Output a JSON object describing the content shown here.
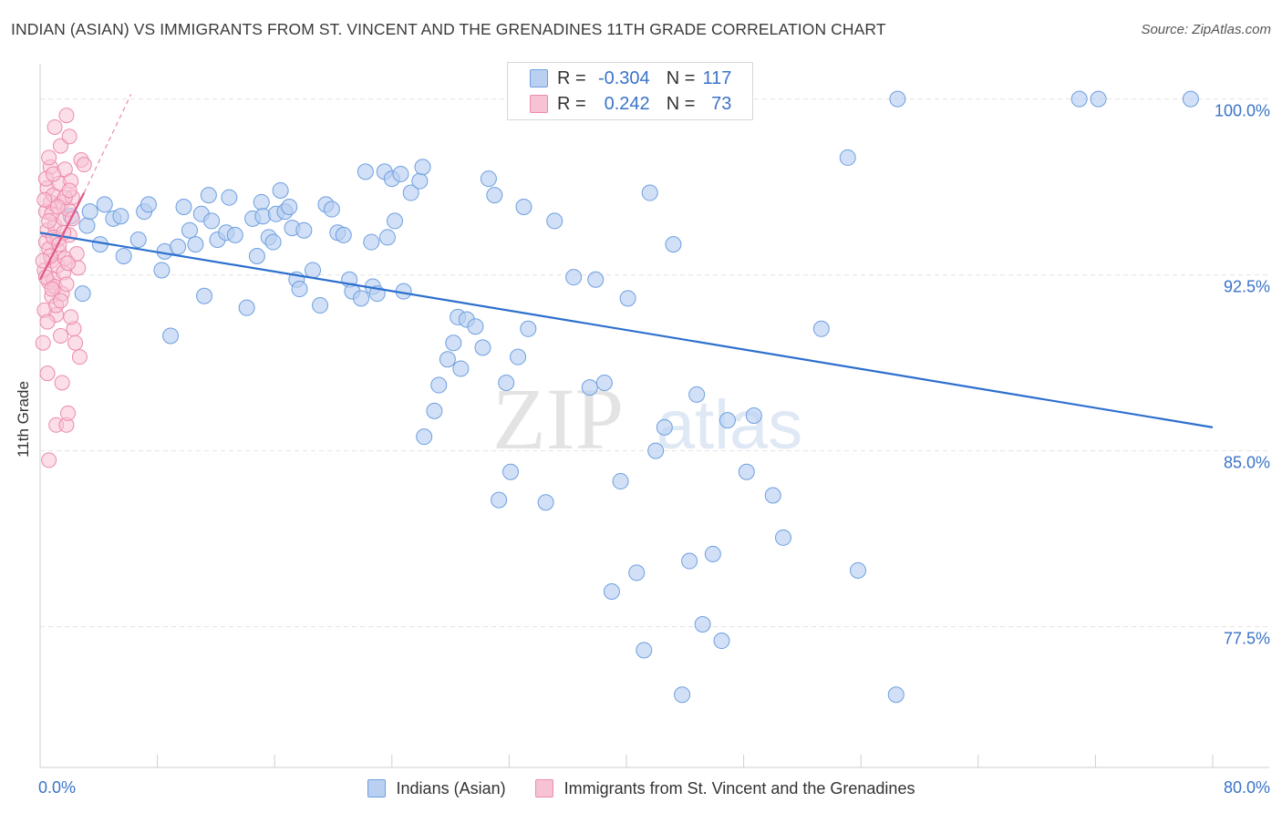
{
  "title": "INDIAN (ASIAN) VS IMMIGRANTS FROM ST. VINCENT AND THE GRENADINES 11TH GRADE CORRELATION CHART",
  "source": "Source: ZipAtlas.com",
  "watermark": {
    "zip": "ZIP",
    "atlas": "atlas"
  },
  "legend": {
    "r_label": "R =",
    "n_label": "N =",
    "series1": {
      "r": "-0.304",
      "n": "117"
    },
    "series2": {
      "r": "0.242",
      "n": "73"
    }
  },
  "colors": {
    "blue_fill": "#b9d0f1",
    "blue_stroke": "#6e9fe0",
    "blue_line": "#2c6fce",
    "pink_fill": "#f7c3d4",
    "pink_stroke": "#ec8aab",
    "pink_line": "#e0578a",
    "grid": "#e2e2e2",
    "tick_label": "#3a73c8"
  },
  "chart_data": {
    "type": "scatter",
    "title": "INDIAN (ASIAN) VS IMMIGRANTS FROM ST. VINCENT AND THE GRENADINES 11TH GRADE CORRELATION CHART",
    "xlabel": "",
    "ylabel": "11th Grade",
    "xlim": [
      0,
      80
    ],
    "ylim": [
      71.5,
      101.5
    ],
    "x_tick_labels": [
      "0.0%",
      "80.0%"
    ],
    "y_ticks": [
      77.5,
      85.0,
      92.5,
      100.0
    ],
    "y_tick_labels": [
      "77.5%",
      "85.0%",
      "92.5%",
      "100.0%"
    ],
    "grid": true,
    "legend_position": "bottom",
    "series": [
      {
        "name": "Indians (Asian)",
        "r": -0.304,
        "n": 117,
        "trend": {
          "x": [
            0,
            80
          ],
          "y": [
            94.3,
            86.0
          ]
        },
        "points": [
          [
            2.1,
            95.0
          ],
          [
            2.9,
            91.7
          ],
          [
            3.2,
            94.6
          ],
          [
            3.4,
            95.2
          ],
          [
            4.1,
            93.8
          ],
          [
            4.4,
            95.5
          ],
          [
            5.0,
            94.9
          ],
          [
            5.5,
            95.0
          ],
          [
            5.7,
            93.3
          ],
          [
            6.7,
            94.0
          ],
          [
            7.1,
            95.2
          ],
          [
            7.4,
            95.5
          ],
          [
            8.3,
            92.7
          ],
          [
            8.5,
            93.5
          ],
          [
            8.9,
            89.9
          ],
          [
            9.4,
            93.7
          ],
          [
            9.8,
            95.4
          ],
          [
            10.2,
            94.4
          ],
          [
            10.6,
            93.8
          ],
          [
            11.0,
            95.1
          ],
          [
            11.2,
            91.6
          ],
          [
            11.5,
            95.9
          ],
          [
            11.7,
            94.8
          ],
          [
            12.1,
            94.0
          ],
          [
            12.7,
            94.3
          ],
          [
            12.9,
            95.8
          ],
          [
            13.3,
            94.2
          ],
          [
            14.1,
            91.1
          ],
          [
            14.5,
            94.9
          ],
          [
            14.8,
            93.3
          ],
          [
            15.1,
            95.6
          ],
          [
            15.2,
            95.0
          ],
          [
            15.6,
            94.1
          ],
          [
            15.9,
            93.9
          ],
          [
            16.1,
            95.1
          ],
          [
            16.4,
            96.1
          ],
          [
            16.7,
            95.2
          ],
          [
            17.0,
            95.4
          ],
          [
            17.2,
            94.5
          ],
          [
            17.5,
            92.3
          ],
          [
            17.7,
            91.9
          ],
          [
            18.0,
            94.4
          ],
          [
            18.6,
            92.7
          ],
          [
            19.1,
            91.2
          ],
          [
            19.5,
            95.5
          ],
          [
            19.9,
            95.3
          ],
          [
            20.3,
            94.3
          ],
          [
            20.7,
            94.2
          ],
          [
            21.1,
            92.3
          ],
          [
            21.3,
            91.8
          ],
          [
            21.9,
            91.5
          ],
          [
            22.2,
            96.9
          ],
          [
            22.6,
            93.9
          ],
          [
            22.7,
            92.0
          ],
          [
            23.0,
            91.7
          ],
          [
            23.5,
            96.9
          ],
          [
            23.7,
            94.1
          ],
          [
            24.0,
            96.6
          ],
          [
            24.2,
            94.8
          ],
          [
            24.6,
            96.8
          ],
          [
            24.8,
            91.8
          ],
          [
            25.3,
            96.0
          ],
          [
            25.9,
            96.5
          ],
          [
            26.1,
            97.1
          ],
          [
            26.2,
            85.6
          ],
          [
            26.9,
            86.7
          ],
          [
            27.2,
            87.8
          ],
          [
            27.8,
            88.9
          ],
          [
            28.2,
            89.6
          ],
          [
            28.5,
            90.7
          ],
          [
            28.7,
            88.5
          ],
          [
            29.1,
            90.6
          ],
          [
            29.7,
            90.3
          ],
          [
            30.2,
            89.4
          ],
          [
            30.6,
            96.6
          ],
          [
            31.0,
            95.9
          ],
          [
            31.3,
            82.9
          ],
          [
            31.8,
            87.9
          ],
          [
            32.1,
            84.1
          ],
          [
            32.6,
            89.0
          ],
          [
            33.0,
            95.4
          ],
          [
            33.3,
            90.2
          ],
          [
            34.5,
            82.8
          ],
          [
            35.1,
            94.8
          ],
          [
            36.4,
            92.4
          ],
          [
            37.5,
            87.7
          ],
          [
            37.9,
            92.3
          ],
          [
            38.5,
            87.9
          ],
          [
            39.0,
            79.0
          ],
          [
            39.6,
            83.7
          ],
          [
            40.1,
            91.5
          ],
          [
            40.7,
            79.8
          ],
          [
            41.2,
            76.5
          ],
          [
            41.6,
            96.0
          ],
          [
            42.0,
            85.0
          ],
          [
            42.6,
            86.0
          ],
          [
            43.2,
            93.8
          ],
          [
            43.8,
            74.6
          ],
          [
            44.3,
            80.3
          ],
          [
            44.8,
            87.4
          ],
          [
            45.2,
            77.6
          ],
          [
            45.9,
            80.6
          ],
          [
            46.5,
            76.9
          ],
          [
            46.9,
            86.3
          ],
          [
            48.2,
            84.1
          ],
          [
            48.7,
            86.5
          ],
          [
            50.0,
            83.1
          ],
          [
            50.7,
            81.3
          ],
          [
            53.3,
            90.2
          ],
          [
            55.1,
            97.5
          ],
          [
            55.8,
            79.9
          ],
          [
            58.4,
            74.6
          ],
          [
            58.5,
            100.0
          ],
          [
            70.9,
            100.0
          ],
          [
            72.2,
            100.0
          ],
          [
            78.5,
            100.0
          ]
        ]
      },
      {
        "name": "Immigrants from St. Vincent and the Grenadines",
        "r": 0.242,
        "n": 73,
        "trend": {
          "x": [
            0,
            3.0
          ],
          "y": [
            92.3,
            96.0
          ]
        },
        "trend_dashed": {
          "x": [
            3.0,
            6.2
          ],
          "y": [
            96.0,
            100.2
          ]
        },
        "points": [
          [
            0.2,
            89.6
          ],
          [
            0.3,
            91.0
          ],
          [
            0.3,
            92.7
          ],
          [
            0.4,
            93.9
          ],
          [
            0.4,
            95.2
          ],
          [
            0.5,
            94.4
          ],
          [
            0.5,
            96.2
          ],
          [
            0.5,
            88.3
          ],
          [
            0.6,
            93.6
          ],
          [
            0.6,
            92.2
          ],
          [
            0.6,
            84.6
          ],
          [
            0.7,
            95.6
          ],
          [
            0.7,
            97.1
          ],
          [
            0.8,
            93.1
          ],
          [
            0.8,
            91.6
          ],
          [
            0.9,
            95.9
          ],
          [
            0.9,
            92.3
          ],
          [
            1.0,
            98.8
          ],
          [
            1.0,
            94.6
          ],
          [
            1.1,
            90.8
          ],
          [
            1.1,
            86.1
          ],
          [
            1.2,
            94.0
          ],
          [
            1.2,
            92.9
          ],
          [
            1.3,
            96.4
          ],
          [
            1.3,
            93.5
          ],
          [
            1.4,
            98.0
          ],
          [
            1.4,
            89.9
          ],
          [
            1.5,
            87.9
          ],
          [
            1.5,
            95.6
          ],
          [
            1.6,
            94.9
          ],
          [
            1.6,
            92.6
          ],
          [
            1.7,
            93.2
          ],
          [
            1.7,
            97.0
          ],
          [
            1.8,
            86.1
          ],
          [
            1.8,
            99.3
          ],
          [
            1.9,
            95.3
          ],
          [
            1.9,
            86.6
          ],
          [
            2.0,
            94.2
          ],
          [
            2.0,
            98.4
          ],
          [
            2.1,
            96.5
          ],
          [
            2.2,
            95.8
          ],
          [
            2.3,
            90.2
          ],
          [
            2.4,
            89.6
          ],
          [
            2.5,
            93.4
          ],
          [
            2.6,
            92.8
          ],
          [
            2.7,
            89.0
          ],
          [
            2.8,
            97.4
          ],
          [
            3.0,
            97.2
          ],
          [
            0.3,
            95.7
          ],
          [
            0.4,
            96.6
          ],
          [
            0.6,
            97.5
          ],
          [
            0.8,
            95.1
          ],
          [
            0.9,
            94.1
          ],
          [
            1.0,
            92.0
          ],
          [
            1.1,
            91.2
          ],
          [
            1.3,
            93.8
          ],
          [
            1.5,
            91.7
          ],
          [
            1.7,
            95.8
          ],
          [
            1.9,
            93.0
          ],
          [
            2.1,
            90.7
          ],
          [
            0.5,
            90.5
          ],
          [
            0.7,
            93.3
          ],
          [
            0.9,
            96.8
          ],
          [
            1.2,
            95.4
          ],
          [
            1.4,
            91.4
          ],
          [
            1.6,
            94.3
          ],
          [
            1.8,
            92.1
          ],
          [
            2.0,
            96.1
          ],
          [
            2.2,
            94.9
          ],
          [
            0.2,
            93.1
          ],
          [
            0.4,
            92.4
          ],
          [
            0.6,
            94.8
          ],
          [
            0.8,
            91.9
          ]
        ]
      }
    ]
  },
  "bottom_legend": {
    "item1": "Indians (Asian)",
    "item2": "Immigrants from St. Vincent and the Grenadines"
  }
}
